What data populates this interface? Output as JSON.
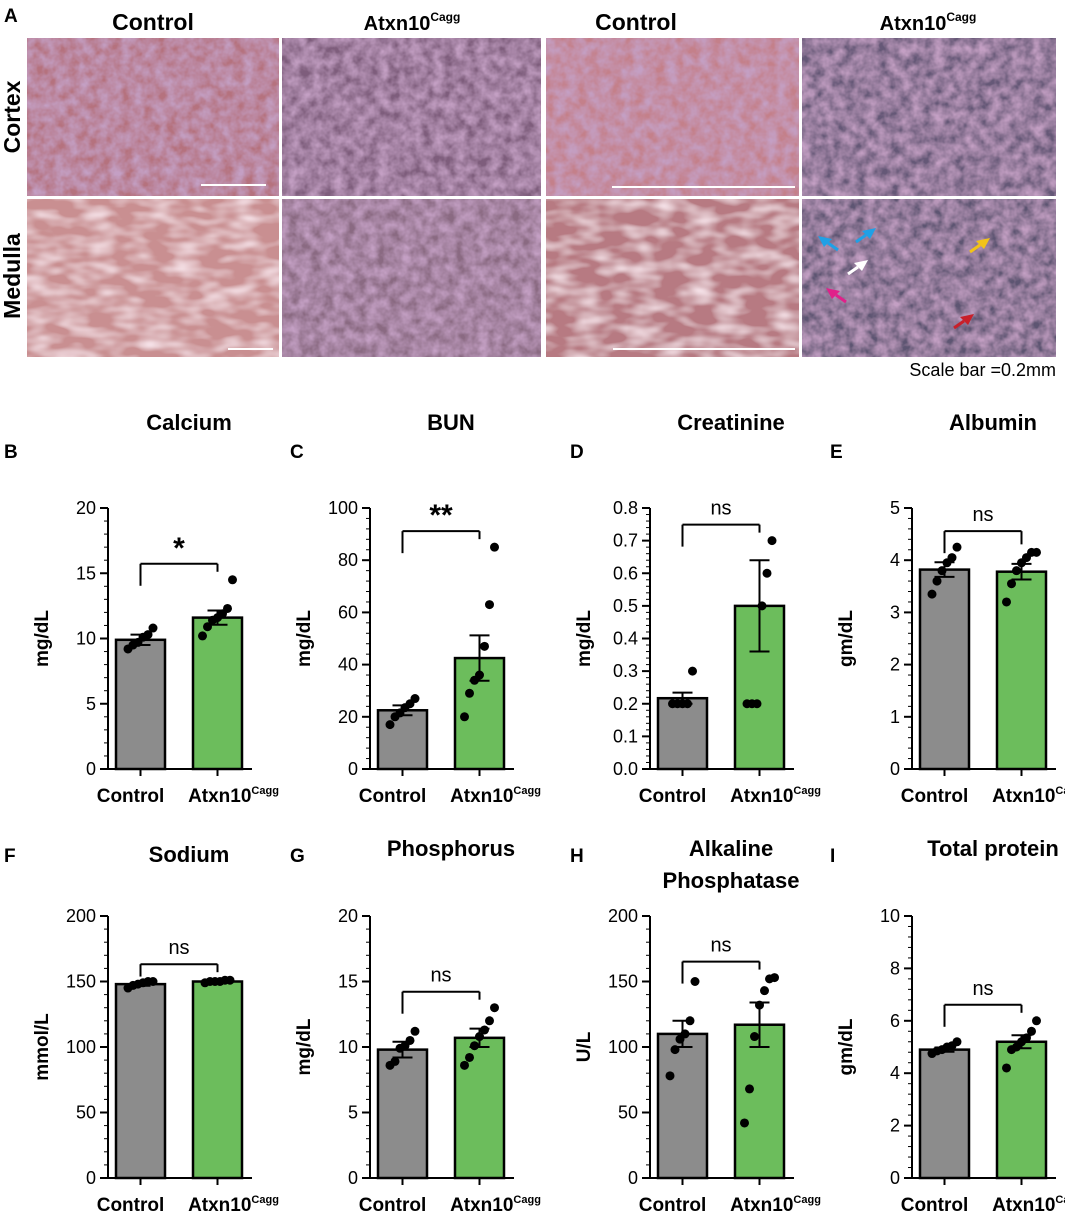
{
  "panel_a": {
    "letter": "A",
    "headers": [
      "Control",
      "Atxn10",
      "Control",
      "Atxn10"
    ],
    "header_sup": "Cagg",
    "row_labels": [
      "Cortex",
      "Medulla"
    ],
    "scale_note": "Scale bar =0.2mm",
    "arrow_colors": [
      "#1fa0e6",
      "#1fa0e6",
      "#ffffff",
      "#f2c318",
      "#e0218a",
      "#c8202a"
    ]
  },
  "colors": {
    "control": "#8c8c8c",
    "mutant": "#6cbd5c"
  },
  "categories": [
    "Control",
    "Atxn10"
  ],
  "category_sup": "Cagg",
  "chart_data": [
    {
      "letter": "B",
      "type": "bar",
      "title": "Calcium",
      "ylabel": "mg/dL",
      "ylim": [
        0,
        20
      ],
      "ticks": [
        0,
        5,
        10,
        15,
        20
      ],
      "sig": "*",
      "values": [
        9.9,
        11.6
      ],
      "sem": [
        0.4,
        0.55
      ],
      "points": [
        [
          9.2,
          9.5,
          9.7,
          10.1,
          10.3,
          10.8
        ],
        [
          10.2,
          10.9,
          11.4,
          11.6,
          11.9,
          12.3,
          14.5
        ]
      ]
    },
    {
      "letter": "C",
      "type": "bar",
      "title": "BUN",
      "ylabel": "mg/dL",
      "ylim": [
        0,
        100
      ],
      "ticks": [
        0,
        20,
        40,
        60,
        80,
        100
      ],
      "sig": "**",
      "values": [
        22.5,
        42.5
      ],
      "sem": [
        1.9,
        8.7
      ],
      "points": [
        [
          17,
          20,
          21.5,
          23.5,
          25,
          27
        ],
        [
          20,
          29,
          34,
          36,
          47,
          63,
          85
        ]
      ]
    },
    {
      "letter": "D",
      "type": "bar",
      "title": "Creatinine",
      "ylabel": "mg/dL",
      "ylim": [
        0,
        0.8
      ],
      "ticks": [
        0,
        0.1,
        0.2,
        0.3,
        0.4,
        0.5,
        0.6,
        0.7,
        0.8
      ],
      "sig": "ns",
      "values": [
        0.217,
        0.5
      ],
      "sem": [
        0.017,
        0.14
      ],
      "points": [
        [
          0.2,
          0.2,
          0.2,
          0.2,
          0.3
        ],
        [
          0.2,
          0.2,
          0.2,
          0.5,
          0.6,
          0.7
        ]
      ]
    },
    {
      "letter": "E",
      "type": "bar",
      "title": "Albumin",
      "ylabel": "gm/dL",
      "ylim": [
        0,
        5
      ],
      "ticks": [
        0,
        1,
        2,
        3,
        4,
        5
      ],
      "sig": "ns",
      "values": [
        3.82,
        3.78
      ],
      "sem": [
        0.14,
        0.15
      ],
      "points": [
        [
          3.35,
          3.6,
          3.8,
          3.95,
          4.05,
          4.25
        ],
        [
          3.2,
          3.55,
          3.8,
          3.95,
          4.05,
          4.15,
          4.15
        ]
      ]
    },
    {
      "letter": "F",
      "type": "bar",
      "title": "Sodium",
      "ylabel": "mmol/L",
      "ylim": [
        0,
        200
      ],
      "ticks": [
        0,
        50,
        100,
        150,
        200
      ],
      "sig": "ns",
      "values": [
        148,
        150
      ],
      "sem": [
        1.2,
        0.8
      ],
      "points": [
        [
          145,
          147,
          148,
          149,
          150,
          150
        ],
        [
          149,
          150,
          150,
          150,
          151,
          151
        ]
      ]
    },
    {
      "letter": "G",
      "type": "bar",
      "title": "Phosphorus",
      "ylabel": "mg/dL",
      "ylim": [
        0,
        20
      ],
      "ticks": [
        0,
        5,
        10,
        15,
        20
      ],
      "sig": "ns",
      "values": [
        9.8,
        10.7
      ],
      "sem": [
        0.6,
        0.7
      ],
      "points": [
        [
          8.6,
          8.9,
          9.9,
          10.1,
          10.5,
          11.2
        ],
        [
          8.6,
          9.2,
          10.1,
          10.8,
          11.3,
          12.0,
          13.0
        ]
      ]
    },
    {
      "letter": "H",
      "type": "bar",
      "title": "Alkaline",
      "title2": "Phosphatase",
      "ylabel": "U/L",
      "ylim": [
        0,
        200
      ],
      "ticks": [
        0,
        50,
        100,
        150,
        200
      ],
      "sig": "ns",
      "values": [
        110,
        117
      ],
      "sem": [
        10,
        17
      ],
      "points": [
        [
          78,
          98,
          106,
          110,
          120,
          150
        ],
        [
          42,
          68,
          108,
          132,
          143,
          152,
          153
        ]
      ]
    },
    {
      "letter": "I",
      "type": "bar",
      "title": "Total protein",
      "ylabel": "gm/dL",
      "ylim": [
        0,
        10
      ],
      "ticks": [
        0,
        2,
        4,
        6,
        8,
        10
      ],
      "sig": "ns",
      "values": [
        4.9,
        5.2
      ],
      "sem": [
        0.08,
        0.25
      ],
      "points": [
        [
          4.75,
          4.85,
          4.9,
          5.0,
          5.05,
          5.2
        ],
        [
          4.2,
          4.9,
          5.0,
          5.2,
          5.35,
          5.6,
          6.0
        ]
      ]
    }
  ]
}
